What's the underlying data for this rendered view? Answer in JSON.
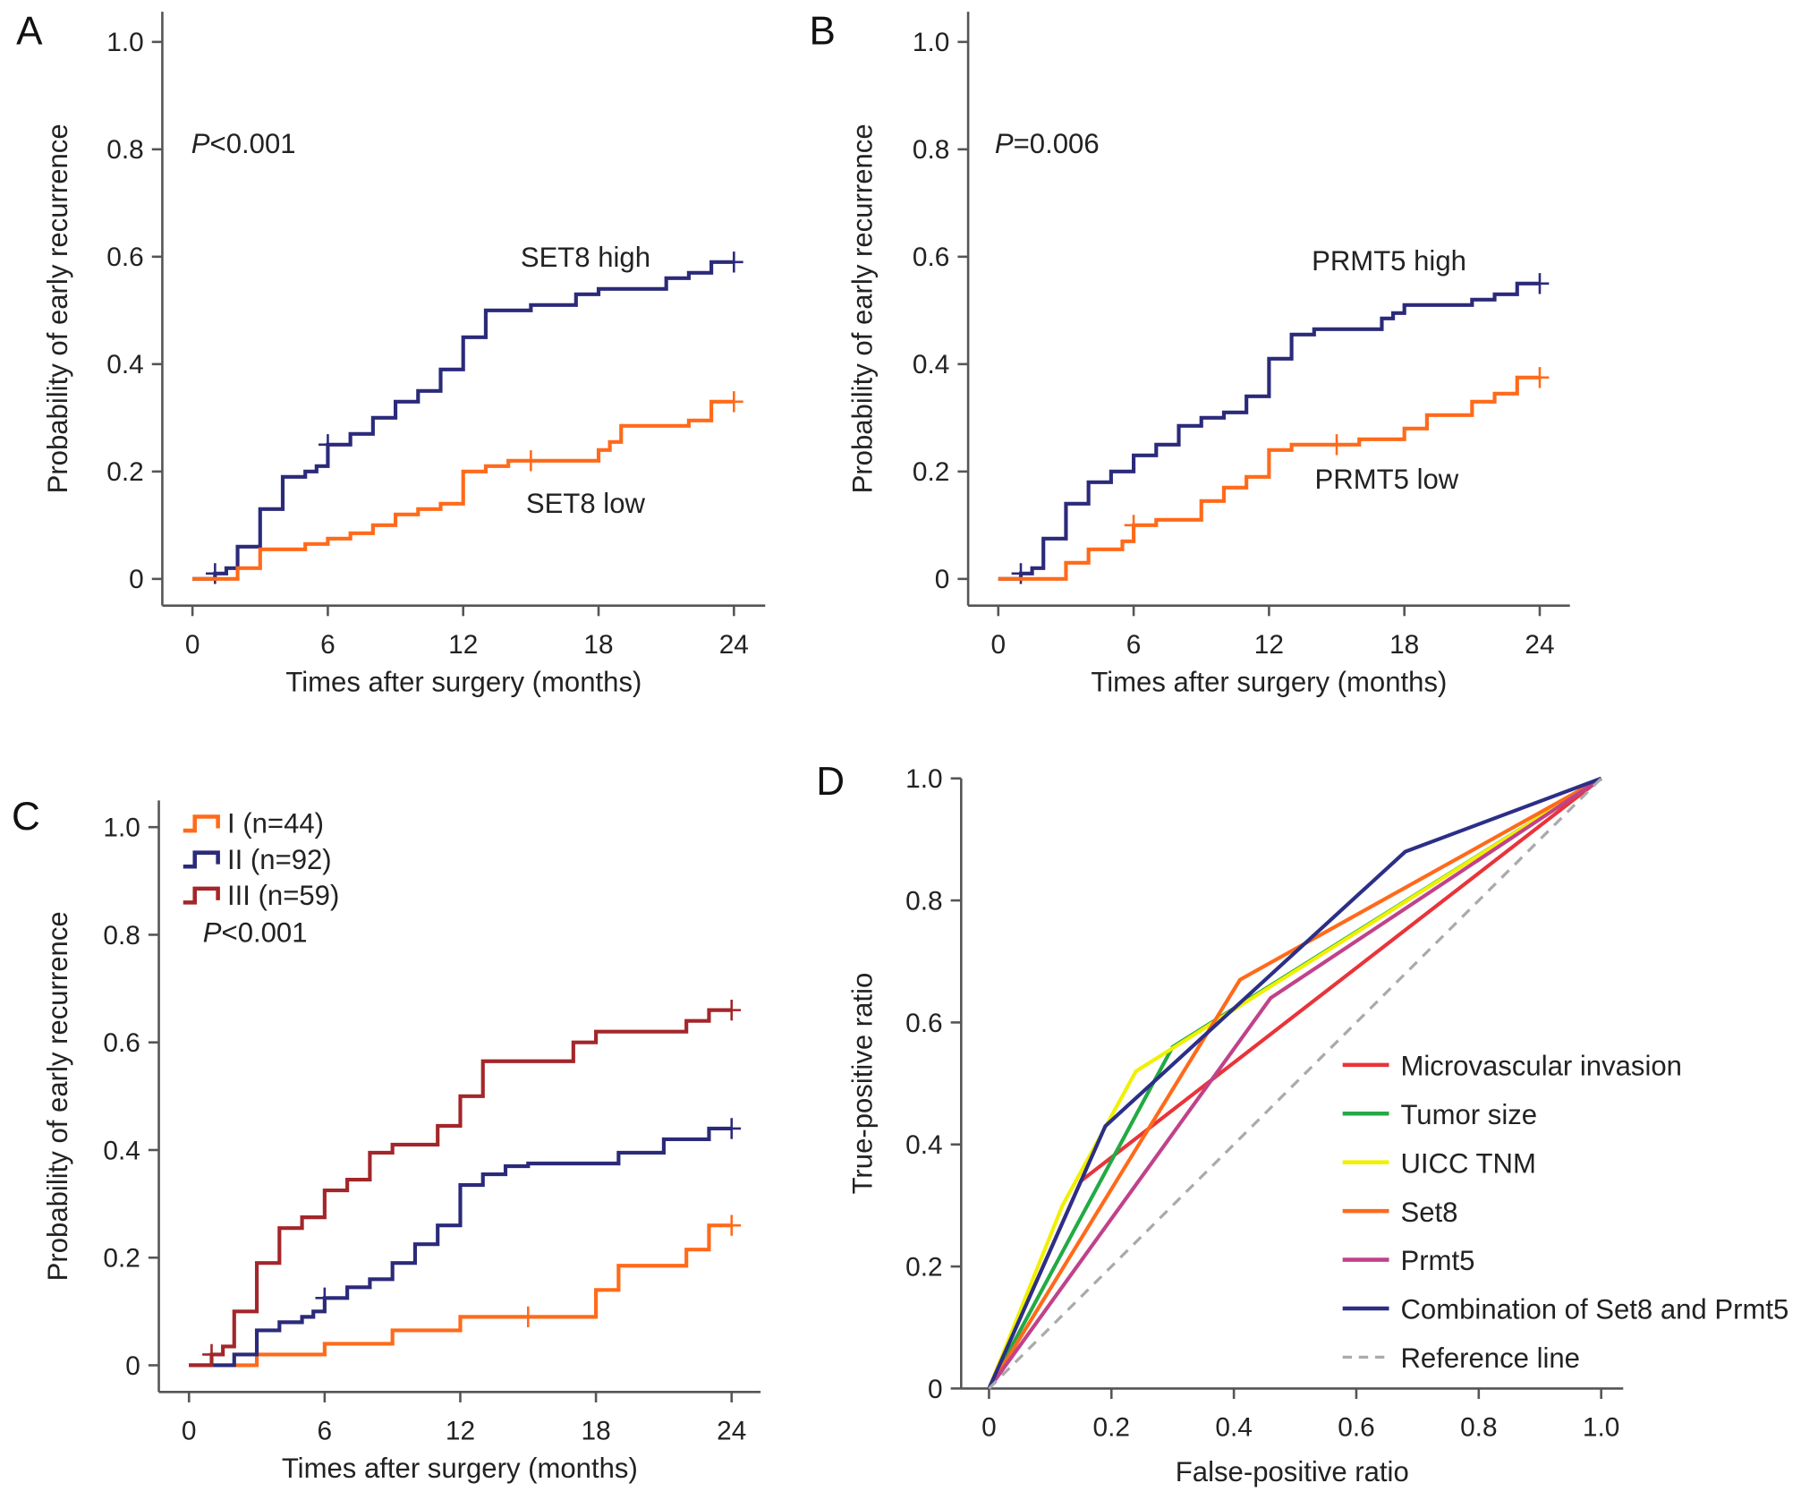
{
  "colors": {
    "navy": "#2b2a7a",
    "orange": "#ff6a1a",
    "darkred": "#a3262a",
    "red": "#e8343a",
    "green": "#22aa44",
    "yellow": "#f0f000",
    "magenta": "#c0428a",
    "blue": "#2b2f86",
    "ref": "#aaaaaa"
  },
  "chart_data": [
    {
      "panel": "A",
      "type": "line",
      "step": true,
      "xlabel": "Times after surgery (months)",
      "ylabel": "Probability of early recurrence",
      "xticks": [
        "0",
        "6",
        "12",
        "18",
        "24"
      ],
      "yticks": [
        "0",
        "0.2",
        "0.4",
        "0.6",
        "0.8",
        "1.0"
      ],
      "xlim": [
        0,
        24
      ],
      "ylim": [
        0,
        1
      ],
      "annotation": {
        "p": "P",
        "rest": "<0.001"
      },
      "series": [
        {
          "name": "SET8 high",
          "color": "navy",
          "points": [
            [
              0,
              0
            ],
            [
              1,
              0.01
            ],
            [
              1.5,
              0.02
            ],
            [
              2,
              0.06
            ],
            [
              3,
              0.13
            ],
            [
              4,
              0.19
            ],
            [
              5,
              0.2
            ],
            [
              5.5,
              0.21
            ],
            [
              6,
              0.25
            ],
            [
              7,
              0.27
            ],
            [
              8,
              0.3
            ],
            [
              9,
              0.33
            ],
            [
              10,
              0.35
            ],
            [
              11,
              0.39
            ],
            [
              12,
              0.45
            ],
            [
              13,
              0.5
            ],
            [
              15,
              0.51
            ],
            [
              17,
              0.53
            ],
            [
              18,
              0.54
            ],
            [
              21,
              0.56
            ],
            [
              22,
              0.57
            ],
            [
              23,
              0.59
            ],
            [
              24,
              0.59
            ]
          ],
          "censored": [
            1,
            6,
            24
          ]
        },
        {
          "name": "SET8 low",
          "color": "orange",
          "points": [
            [
              0,
              0
            ],
            [
              2,
              0.02
            ],
            [
              3,
              0.055
            ],
            [
              5,
              0.065
            ],
            [
              6,
              0.075
            ],
            [
              7,
              0.085
            ],
            [
              8,
              0.1
            ],
            [
              9,
              0.12
            ],
            [
              10,
              0.13
            ],
            [
              11,
              0.14
            ],
            [
              12,
              0.2
            ],
            [
              13,
              0.21
            ],
            [
              14,
              0.22
            ],
            [
              18,
              0.24
            ],
            [
              18.5,
              0.255
            ],
            [
              19,
              0.285
            ],
            [
              22,
              0.295
            ],
            [
              23,
              0.33
            ],
            [
              24,
              0.33
            ]
          ],
          "censored": [
            15,
            24
          ]
        }
      ]
    },
    {
      "panel": "B",
      "type": "line",
      "step": true,
      "xlabel": "Times after surgery (months)",
      "ylabel": "Probability of early recurrence",
      "xticks": [
        "0",
        "6",
        "12",
        "18",
        "24"
      ],
      "yticks": [
        "0",
        "0.2",
        "0.4",
        "0.6",
        "0.8",
        "1.0"
      ],
      "xlim": [
        0,
        24
      ],
      "ylim": [
        0,
        1
      ],
      "annotation": {
        "p": "P",
        "rest": "=0.006"
      },
      "series": [
        {
          "name": "PRMT5 high",
          "color": "navy",
          "points": [
            [
              0,
              0
            ],
            [
              1,
              0.01
            ],
            [
              1.5,
              0.02
            ],
            [
              2,
              0.075
            ],
            [
              3,
              0.14
            ],
            [
              4,
              0.18
            ],
            [
              5,
              0.2
            ],
            [
              6,
              0.23
            ],
            [
              7,
              0.25
            ],
            [
              8,
              0.285
            ],
            [
              9,
              0.3
            ],
            [
              10,
              0.31
            ],
            [
              11,
              0.34
            ],
            [
              12,
              0.41
            ],
            [
              13,
              0.455
            ],
            [
              14,
              0.465
            ],
            [
              17,
              0.485
            ],
            [
              17.5,
              0.495
            ],
            [
              18,
              0.51
            ],
            [
              21,
              0.52
            ],
            [
              22,
              0.53
            ],
            [
              23,
              0.55
            ],
            [
              24,
              0.55
            ]
          ],
          "censored": [
            1,
            24
          ]
        },
        {
          "name": "PRMT5 low",
          "color": "orange",
          "points": [
            [
              0,
              0
            ],
            [
              3,
              0.03
            ],
            [
              4,
              0.055
            ],
            [
              5.5,
              0.07
            ],
            [
              6,
              0.1
            ],
            [
              7,
              0.11
            ],
            [
              9,
              0.145
            ],
            [
              10,
              0.17
            ],
            [
              11,
              0.19
            ],
            [
              12,
              0.24
            ],
            [
              13,
              0.25
            ],
            [
              16,
              0.26
            ],
            [
              18,
              0.28
            ],
            [
              19,
              0.305
            ],
            [
              21,
              0.33
            ],
            [
              22,
              0.345
            ],
            [
              23,
              0.375
            ],
            [
              24,
              0.375
            ]
          ],
          "censored": [
            6,
            15,
            24
          ]
        }
      ]
    },
    {
      "panel": "C",
      "type": "line",
      "step": true,
      "xlabel": "Times after surgery (months)",
      "ylabel": "Probability of early recurrence",
      "xticks": [
        "0",
        "6",
        "12",
        "18",
        "24"
      ],
      "yticks": [
        "0",
        "0.2",
        "0.4",
        "0.6",
        "0.8",
        "1.0"
      ],
      "xlim": [
        0,
        24
      ],
      "ylim": [
        0,
        1
      ],
      "annotation": {
        "p": "P",
        "rest": "<0.001"
      },
      "legend": "top-left",
      "series": [
        {
          "name": "I (n=44)",
          "color": "orange",
          "points": [
            [
              0,
              0
            ],
            [
              3,
              0.02
            ],
            [
              6,
              0.04
            ],
            [
              9,
              0.065
            ],
            [
              12,
              0.09
            ],
            [
              18,
              0.14
            ],
            [
              19,
              0.185
            ],
            [
              22,
              0.215
            ],
            [
              23,
              0.26
            ],
            [
              24,
              0.26
            ]
          ],
          "censored": [
            15,
            24
          ]
        },
        {
          "name": "II (n=92)",
          "color": "navy",
          "points": [
            [
              0,
              0
            ],
            [
              2,
              0.02
            ],
            [
              3,
              0.065
            ],
            [
              4,
              0.08
            ],
            [
              5,
              0.09
            ],
            [
              5.5,
              0.1
            ],
            [
              6,
              0.125
            ],
            [
              7,
              0.145
            ],
            [
              8,
              0.16
            ],
            [
              9,
              0.19
            ],
            [
              10,
              0.225
            ],
            [
              11,
              0.26
            ],
            [
              12,
              0.335
            ],
            [
              13,
              0.355
            ],
            [
              14,
              0.37
            ],
            [
              15,
              0.375
            ],
            [
              19,
              0.395
            ],
            [
              21,
              0.42
            ],
            [
              23,
              0.44
            ],
            [
              24,
              0.44
            ]
          ],
          "censored": [
            6,
            24
          ]
        },
        {
          "name": "III (n=59)",
          "color": "darkred",
          "points": [
            [
              0,
              0
            ],
            [
              1,
              0.02
            ],
            [
              1.5,
              0.035
            ],
            [
              2,
              0.1
            ],
            [
              3,
              0.19
            ],
            [
              4,
              0.255
            ],
            [
              5,
              0.275
            ],
            [
              6,
              0.325
            ],
            [
              7,
              0.345
            ],
            [
              8,
              0.395
            ],
            [
              9,
              0.41
            ],
            [
              11,
              0.445
            ],
            [
              12,
              0.5
            ],
            [
              13,
              0.565
            ],
            [
              17,
              0.6
            ],
            [
              18,
              0.62
            ],
            [
              22,
              0.64
            ],
            [
              23,
              0.66
            ],
            [
              24,
              0.66
            ]
          ],
          "censored": [
            1,
            24
          ]
        }
      ]
    },
    {
      "panel": "D",
      "type": "line",
      "xlabel": "False-positive ratio",
      "ylabel": "True-positive ratio",
      "xticks": [
        "0",
        "0.2",
        "0.4",
        "0.6",
        "0.8",
        "1.0"
      ],
      "yticks": [
        "0",
        "0.2",
        "0.4",
        "0.6",
        "0.8",
        "1.0"
      ],
      "xlim": [
        0,
        1
      ],
      "ylim": [
        0,
        1
      ],
      "legend": "bottom-right",
      "series": [
        {
          "name": "Microvascular invasion",
          "color": "red",
          "points": [
            [
              0,
              0
            ],
            [
              0.15,
              0.34
            ],
            [
              1,
              1
            ]
          ]
        },
        {
          "name": "Tumor size",
          "color": "green",
          "points": [
            [
              0,
              0
            ],
            [
              0.3,
              0.56
            ],
            [
              1,
              1
            ]
          ]
        },
        {
          "name": "UICC TNM",
          "color": "yellow",
          "points": [
            [
              0,
              0
            ],
            [
              0.12,
              0.3
            ],
            [
              0.24,
              0.52
            ],
            [
              1,
              1
            ]
          ]
        },
        {
          "name": "Set8",
          "color": "orange",
          "points": [
            [
              0,
              0
            ],
            [
              0.41,
              0.67
            ],
            [
              1,
              1
            ]
          ]
        },
        {
          "name": "Prmt5",
          "color": "magenta",
          "points": [
            [
              0,
              0
            ],
            [
              0.46,
              0.64
            ],
            [
              1,
              1
            ]
          ]
        },
        {
          "name": "Combination of Set8 and Prmt5",
          "color": "blue",
          "points": [
            [
              0,
              0
            ],
            [
              0.19,
              0.43
            ],
            [
              0.68,
              0.88
            ],
            [
              1,
              1
            ]
          ]
        },
        {
          "name": "Reference line",
          "color": "ref",
          "dashed": true,
          "points": [
            [
              0,
              0
            ],
            [
              1,
              1
            ]
          ]
        }
      ]
    }
  ]
}
